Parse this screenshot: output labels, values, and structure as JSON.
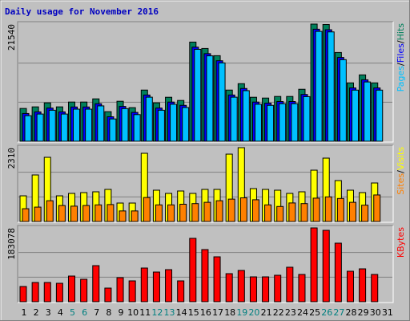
{
  "chart_data": [
    {
      "type": "bar",
      "title": "Daily usage for November 2016",
      "ylim": [
        0,
        21540
      ],
      "yticks": [
        21540
      ],
      "legend_separator": "/",
      "series": [
        {
          "name": "Hits",
          "color": "#00805c",
          "values": [
            6027,
            6321,
            7056,
            6321,
            7203,
            7203,
            7791,
            5439,
            7350,
            6174,
            9408,
            7056,
            8085,
            7497,
            18228,
            17052,
            15729,
            9408,
            10584,
            8085,
            7938,
            8232,
            8232,
            9555,
            21540,
            21462,
            16317,
            10731,
            12201,
            10731,
            null
          ]
        },
        {
          "name": "Files",
          "color": "#0000ff",
          "values": [
            5100,
            5400,
            6100,
            5400,
            6300,
            6300,
            6900,
            4500,
            6400,
            5300,
            8500,
            6100,
            7200,
            6600,
            17300,
            16100,
            14800,
            8500,
            9700,
            7200,
            7000,
            7300,
            7300,
            8600,
            20600,
            20500,
            15400,
            9800,
            11300,
            9800,
            null
          ]
        },
        {
          "name": "Pages",
          "color": "#00c0ff",
          "values": [
            4700,
            5000,
            5700,
            5000,
            5900,
            5900,
            6500,
            4100,
            6000,
            4900,
            8100,
            5700,
            6800,
            6200,
            16900,
            15700,
            14400,
            8100,
            9300,
            6800,
            6600,
            6900,
            6900,
            8200,
            20200,
            20100,
            15000,
            9400,
            10900,
            9400,
            null
          ]
        }
      ]
    },
    {
      "type": "bar",
      "ylim": [
        0,
        2310
      ],
      "yticks": [
        2310
      ],
      "legend_separator": "/",
      "series": [
        {
          "name": "Visits",
          "color": "#ffff00",
          "values": [
            803,
            1456,
            2008,
            803,
            879,
            904,
            929,
            1004,
            577,
            577,
            2134,
            979,
            879,
            954,
            879,
            1004,
            1004,
            2108,
            2310,
            1029,
            1004,
            979,
            879,
            929,
            1606,
            1983,
            1280,
            979,
            904,
            1205,
            null
          ]
        },
        {
          "name": "Sites",
          "color": "#ff8000",
          "values": [
            400,
            450,
            650,
            500,
            480,
            500,
            520,
            530,
            330,
            330,
            750,
            520,
            520,
            540,
            560,
            600,
            650,
            700,
            740,
            680,
            520,
            470,
            580,
            560,
            730,
            770,
            720,
            600,
            510,
            830,
            null
          ]
        }
      ]
    },
    {
      "type": "bar",
      "ylim": [
        0,
        183078
      ],
      "yticks": [
        183078
      ],
      "categories": [
        "1",
        "2",
        "3",
        "4",
        "5",
        "6",
        "7",
        "8",
        "9",
        "10",
        "11",
        "12",
        "13",
        "14",
        "15",
        "16",
        "17",
        "18",
        "19",
        "20",
        "21",
        "22",
        "23",
        "24",
        "25",
        "26",
        "27",
        "28",
        "29",
        "30",
        "31"
      ],
      "category_colors": [
        "#000000",
        "#000000",
        "#000000",
        "#000000",
        "#008080",
        "#008080",
        "#000000",
        "#000000",
        "#000000",
        "#000000",
        "#000000",
        "#008080",
        "#008080",
        "#000000",
        "#000000",
        "#000000",
        "#000000",
        "#000000",
        "#008080",
        "#008080",
        "#000000",
        "#000000",
        "#000000",
        "#000000",
        "#000000",
        "#008080",
        "#008080",
        "#000000",
        "#000000",
        "#000000",
        "#000000"
      ],
      "series": [
        {
          "name": "KBytes",
          "color": "#ff0000",
          "values": [
            37810,
            47760,
            47760,
            45770,
            63680,
            55720,
            89550,
            33830,
            59700,
            51740,
            83580,
            73630,
            79600,
            51740,
            157210,
            129350,
            111440,
            69650,
            77610,
            61690,
            61690,
            65670,
            85570,
            67660,
            183078,
            177110,
            145270,
            75620,
            81590,
            67660,
            null
          ]
        }
      ]
    }
  ]
}
